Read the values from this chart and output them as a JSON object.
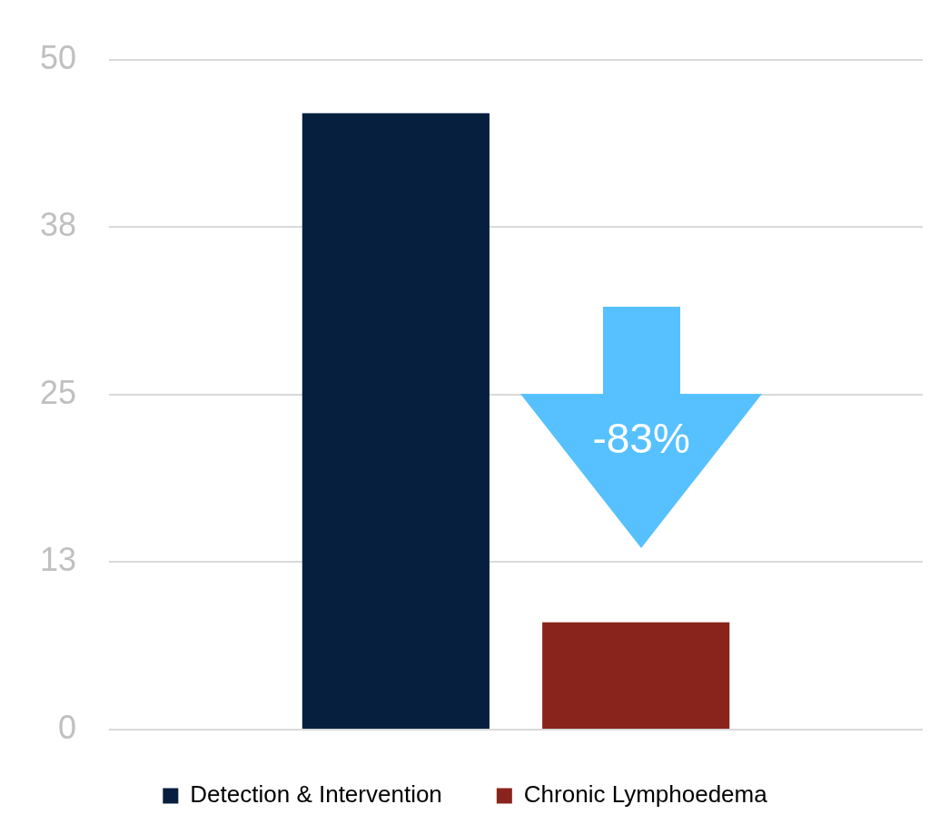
{
  "chart_data": {
    "type": "bar",
    "categories": [
      null
    ],
    "series": [
      {
        "name": "Detection & Intervention",
        "color": "#061f3f",
        "values": [
          46
        ]
      },
      {
        "name": "Chronic Lymphoedema",
        "color": "#89241c",
        "values": [
          8
        ]
      }
    ],
    "ylim": [
      0,
      50
    ],
    "yticks": [
      0,
      {
        "value": 12.5,
        "label": "13"
      },
      25,
      {
        "value": 37.5,
        "label": "38"
      },
      50
    ],
    "grid": "y",
    "legend": "bottom",
    "annotations": [
      "-83%"
    ]
  }
}
